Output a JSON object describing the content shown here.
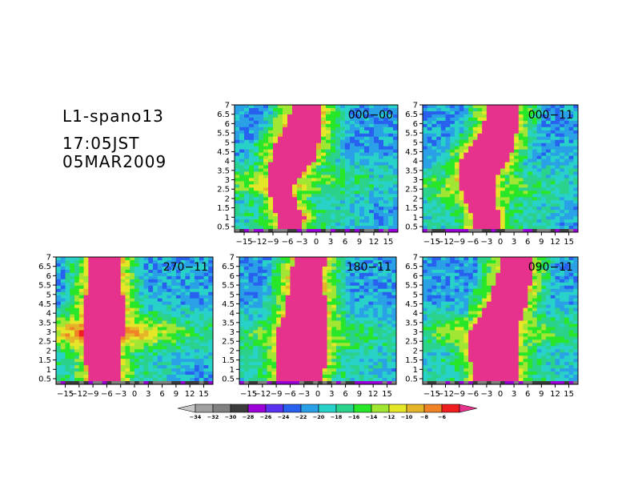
{
  "header": {
    "line1": "L1-spano13",
    "line2": "17:05JST",
    "line3": "05MAR2009"
  },
  "chart_data": {
    "type": "heatmap",
    "xticks": [
      "-15",
      "-12",
      "-9",
      "-6",
      "-3",
      "0",
      "3",
      "6",
      "9",
      "12",
      "15"
    ],
    "yticks": [
      "0.5",
      "1",
      "1.5",
      "2",
      "2.5",
      "3",
      "3.5",
      "4",
      "4.5",
      "5",
      "5.5",
      "6",
      "6.5",
      "7"
    ],
    "xlim": [
      -17,
      17
    ],
    "ylim": [
      0.2,
      7
    ],
    "panels": [
      {
        "label": "000-00",
        "core_x": [
          -5.5,
          -5.0,
          -6.5,
          -7.0,
          -7.5,
          -7.0,
          -6.0,
          -5.0,
          -4.5,
          -4.0,
          -3.0,
          -2.5,
          -2.0,
          -2.0
        ],
        "core_w": [
          5.0,
          5.5,
          5.0,
          5.0,
          5.5,
          6.0,
          7.5,
          9.0,
          9.5,
          9.0,
          8.0,
          7.5,
          7.0,
          6.0
        ],
        "sh_y": 2.8,
        "sh_amp": 9
      },
      {
        "label": "000-11",
        "core_x": [
          -3.0,
          -3.0,
          -4.0,
          -4.5,
          -5.0,
          -5.0,
          -4.5,
          -3.5,
          -2.5,
          -1.5,
          -0.5,
          0.0,
          0.5,
          0.5
        ],
        "core_w": [
          6.0,
          6.0,
          6.5,
          7.0,
          7.5,
          8.0,
          9.5,
          10.5,
          10.0,
          9.0,
          8.0,
          7.5,
          7.0,
          6.5
        ],
        "sh_y": 2.6,
        "sh_amp": 8
      },
      {
        "label": "270-11",
        "core_x": [
          -6.5,
          -6.5,
          -7.0,
          -7.0,
          -7.0,
          -6.5,
          -6.5,
          -6.5,
          -6.5,
          -6.5,
          -6.5,
          -6.5,
          -6.5,
          -6.0
        ],
        "core_w": [
          7.0,
          7.5,
          7.5,
          7.5,
          8.0,
          9.0,
          9.5,
          9.5,
          8.5,
          8.0,
          7.5,
          7.5,
          7.0,
          7.0
        ],
        "sh_y": 2.9,
        "sh_amp": 13
      },
      {
        "label": "180-11",
        "core_x": [
          -4.0,
          -3.5,
          -3.5,
          -3.5,
          -3.5,
          -3.5,
          -3.0,
          -2.5,
          -2.5,
          -2.5,
          -2.5,
          -2.5,
          -2.0,
          -1.5
        ],
        "core_w": [
          9.0,
          10.0,
          10.0,
          10.0,
          10.5,
          11.0,
          10.0,
          9.0,
          8.5,
          8.0,
          7.5,
          7.5,
          7.0,
          7.0
        ],
        "sh_y": 2.7,
        "sh_amp": 8
      },
      {
        "label": "090-11",
        "core_x": [
          -1.0,
          -1.0,
          -1.5,
          -1.5,
          -2.0,
          -1.5,
          -0.5,
          0.5,
          1.5,
          2.0,
          2.5,
          3.0,
          3.5,
          3.5
        ],
        "core_w": [
          9.0,
          9.5,
          10.5,
          11.0,
          11.0,
          10.5,
          9.5,
          9.0,
          8.5,
          8.0,
          8.0,
          7.5,
          7.0,
          7.0
        ],
        "sh_y": 3.0,
        "sh_amp": 9
      }
    ],
    "colorbar": {
      "labels": [
        "-34",
        "-32",
        "-30",
        "-28",
        "-26",
        "-24",
        "-22",
        "-20",
        "-18",
        "-16",
        "-14",
        "-12",
        "-10",
        "-8",
        "-6"
      ],
      "colors": [
        "#c8c8c8",
        "#a0a0a0",
        "#808080",
        "#3c3c3c",
        "#9b00d8",
        "#5a32f0",
        "#2860f0",
        "#2aa0e6",
        "#28d2c8",
        "#2ad28c",
        "#28e628",
        "#a0e632",
        "#e6e628",
        "#e6b428",
        "#f08228",
        "#f01e1e",
        "#e6328c"
      ],
      "ends": "triangles"
    }
  }
}
